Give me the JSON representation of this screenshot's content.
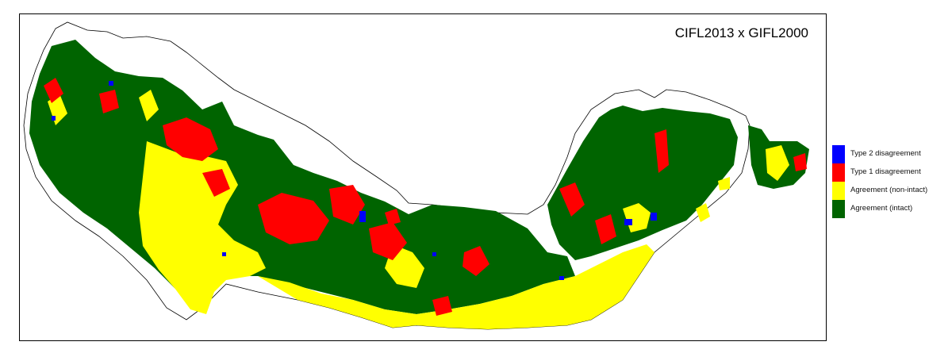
{
  "map": {
    "title": "CIFL2013 x GIFL2000",
    "colors": {
      "outline": "#000000",
      "intact": "#006400",
      "non_intact": "#ffff00",
      "type1": "#ff0000",
      "type2": "#0000ff"
    }
  },
  "legend": {
    "items": [
      {
        "label": "Type 2 disagreement",
        "color": "#0000ff"
      },
      {
        "label": "Type 1 disagreement",
        "color": "#ff0000"
      },
      {
        "label": "Agreement (non-intact)",
        "color": "#ffff00"
      },
      {
        "label": "Agreement (intact)",
        "color": "#006400"
      }
    ]
  }
}
